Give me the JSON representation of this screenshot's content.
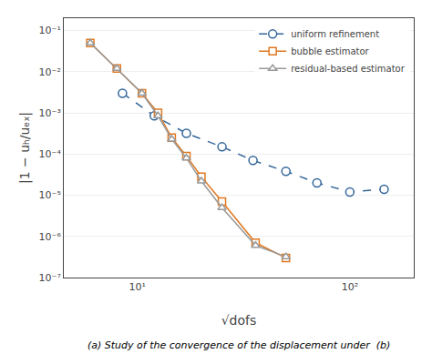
{
  "chart_data": {
    "type": "line",
    "log": true,
    "xlabel": "√dofs",
    "ylabel": "|1 − uₕ/uₑₓ|",
    "caption": "(a) Study of the convergence of the displacement under  (b)",
    "series": [
      {
        "name": "uniform refinement",
        "color": "#336699",
        "marker": "circle",
        "line_style": "dashed",
        "x": [
          8.5,
          12,
          17,
          25,
          35,
          50,
          70,
          100,
          145
        ],
        "values": [
          0.003,
          0.00085,
          0.00032,
          0.00015,
          7e-05,
          3.8e-05,
          2e-05,
          1.2e-05,
          1.4e-05
        ]
      },
      {
        "name": "bubble estimator",
        "color": "#e07820",
        "marker": "square",
        "line_style": "solid",
        "x": [
          6.0,
          8.0,
          10.5,
          12.5,
          14.5,
          17.0,
          20.0,
          25.0,
          36.0,
          50.0
        ],
        "values": [
          0.05,
          0.012,
          0.003,
          0.001,
          0.00025,
          9e-05,
          2.8e-05,
          7e-06,
          7e-07,
          3e-07
        ]
      },
      {
        "name": "residual-based estimator",
        "color": "#999999",
        "marker": "triangle",
        "line_style": "solid",
        "x": [
          6.0,
          8.0,
          10.5,
          12.5,
          14.5,
          17.0,
          20.0,
          25.0,
          36.0,
          50.0
        ],
        "values": [
          0.05,
          0.012,
          0.003,
          0.00085,
          0.00023,
          8e-05,
          2.2e-05,
          5e-06,
          6e-07,
          3.2e-07
        ]
      }
    ],
    "xlim": [
      4.5,
      200
    ],
    "ylim": [
      1e-07,
      0.2
    ],
    "xticks": [
      {
        "value": 10,
        "label": "10¹"
      },
      {
        "value": 100,
        "label": "10²"
      }
    ],
    "yticks": [
      {
        "value": 1e-07,
        "label": "10⁻⁷"
      },
      {
        "value": 1e-06,
        "label": "10⁻⁶"
      },
      {
        "value": 1e-05,
        "label": "10⁻⁵"
      },
      {
        "value": 0.0001,
        "label": "10⁻⁴"
      },
      {
        "value": 0.001,
        "label": "10⁻³"
      },
      {
        "value": 0.01,
        "label": "10⁻²"
      },
      {
        "value": 0.1,
        "label": "10⁻¹"
      }
    ],
    "grid": "y",
    "legend": "upper right"
  }
}
